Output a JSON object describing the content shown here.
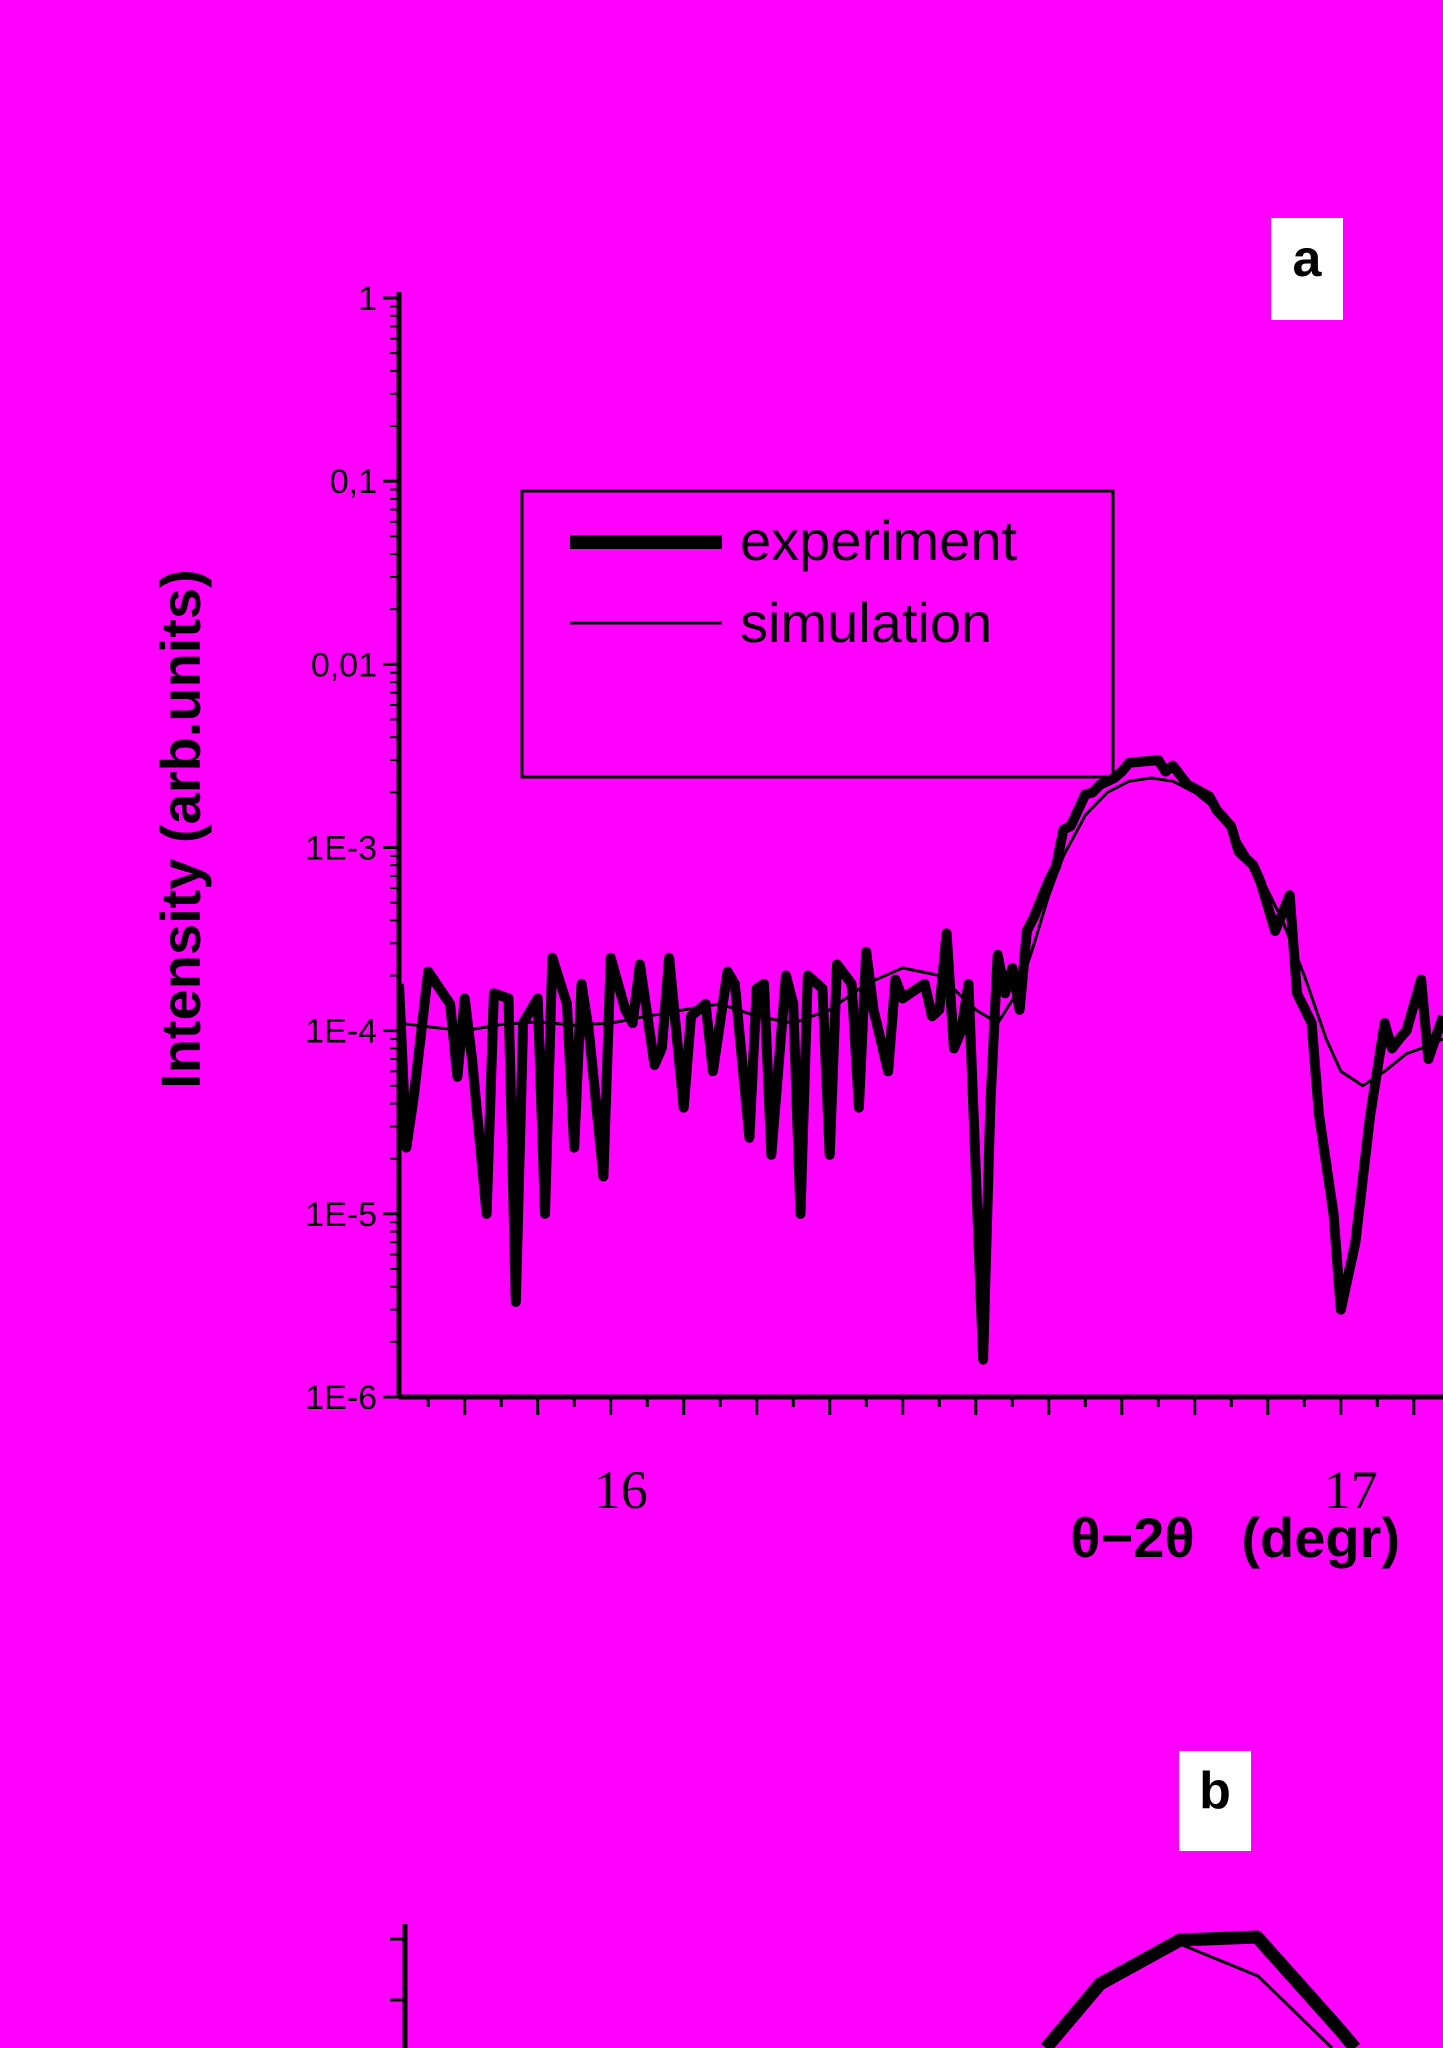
{
  "chart_data": [
    {
      "panel": "a",
      "type": "line",
      "title": "",
      "xlabel": "θ−2θ   (degr)",
      "ylabel": "Intensity (arb.units)",
      "yscale": "log",
      "ylim": [
        1e-06,
        1
      ],
      "xlim": [
        15.71,
        17.14
      ],
      "x_ticks": [
        {
          "value": 16,
          "label": "16"
        },
        {
          "value": 17,
          "label": "17"
        }
      ],
      "y_ticks": [
        {
          "value": 1,
          "label": "1"
        },
        {
          "value": 0.1,
          "label": "0,1"
        },
        {
          "value": 0.01,
          "label": "0,01"
        },
        {
          "value": 0.001,
          "label": "1E-3"
        },
        {
          "value": 0.0001,
          "label": "1E-4"
        },
        {
          "value": 1e-05,
          "label": "1E-5"
        },
        {
          "value": 1e-06,
          "label": "1E-6"
        }
      ],
      "legend_position": "upper-center",
      "series": [
        {
          "name": "experiment",
          "line_style": "thick",
          "points": [
            [
              15.71,
              0.00018
            ],
            [
              15.72,
              2.3e-05
            ],
            [
              15.73,
              4.3e-05
            ],
            [
              15.75,
              0.00021
            ],
            [
              15.77,
              0.00016
            ],
            [
              15.78,
              0.00014
            ],
            [
              15.79,
              5.6e-05
            ],
            [
              15.8,
              0.00015
            ],
            [
              15.81,
              7e-05
            ],
            [
              15.83,
              1e-05
            ],
            [
              15.84,
              0.00016
            ],
            [
              15.86,
              0.00015
            ],
            [
              15.87,
              3.3e-06
            ],
            [
              15.88,
              0.00011
            ],
            [
              15.9,
              0.00015
            ],
            [
              15.91,
              1e-05
            ],
            [
              15.92,
              0.00025
            ],
            [
              15.94,
              0.00014
            ],
            [
              15.95,
              2.3e-05
            ],
            [
              15.96,
              0.00018
            ],
            [
              15.97,
              0.0001
            ],
            [
              15.99,
              1.6e-05
            ],
            [
              16.0,
              0.00025
            ],
            [
              16.02,
              0.00013
            ],
            [
              16.03,
              0.00011
            ],
            [
              16.04,
              0.00023
            ],
            [
              16.06,
              6.5e-05
            ],
            [
              16.07,
              8e-05
            ],
            [
              16.08,
              0.00025
            ],
            [
              16.1,
              3.8e-05
            ],
            [
              16.11,
              0.00012
            ],
            [
              16.13,
              0.00014
            ],
            [
              16.14,
              6e-05
            ],
            [
              16.16,
              0.00021
            ],
            [
              16.17,
              0.00018
            ],
            [
              16.19,
              2.6e-05
            ],
            [
              16.2,
              0.00017
            ],
            [
              16.21,
              0.00018
            ],
            [
              16.22,
              2.1e-05
            ],
            [
              16.24,
              0.0002
            ],
            [
              16.25,
              0.00014
            ],
            [
              16.26,
              1e-05
            ],
            [
              16.27,
              0.0002
            ],
            [
              16.29,
              0.00017
            ],
            [
              16.3,
              2.1e-05
            ],
            [
              16.31,
              0.00023
            ],
            [
              16.33,
              0.00018
            ],
            [
              16.34,
              3.8e-05
            ],
            [
              16.35,
              0.00027
            ],
            [
              16.36,
              0.00013
            ],
            [
              16.38,
              6e-05
            ],
            [
              16.39,
              0.00019
            ],
            [
              16.4,
              0.00015
            ],
            [
              16.42,
              0.00017
            ],
            [
              16.43,
              0.00018
            ],
            [
              16.44,
              0.00012
            ],
            [
              16.45,
              0.00013
            ],
            [
              16.46,
              0.00034
            ],
            [
              16.47,
              8e-05
            ],
            [
              16.48,
              0.0001
            ],
            [
              16.49,
              0.00018
            ],
            [
              16.51,
              1.6e-06
            ],
            [
              16.52,
              4e-05
            ],
            [
              16.53,
              0.00026
            ],
            [
              16.54,
              0.00016
            ],
            [
              16.55,
              0.00022
            ],
            [
              16.56,
              0.00013
            ],
            [
              16.57,
              0.00035
            ],
            [
              16.58,
              0.00042
            ],
            [
              16.6,
              0.00066
            ],
            [
              16.61,
              0.00079
            ],
            [
              16.62,
              0.00125
            ],
            [
              16.63,
              0.00131
            ],
            [
              16.65,
              0.00195
            ],
            [
              16.66,
              0.002
            ],
            [
              16.67,
              0.0022
            ],
            [
              16.69,
              0.0024
            ],
            [
              16.7,
              0.0026
            ],
            [
              16.71,
              0.0029
            ],
            [
              16.73,
              0.00295
            ],
            [
              16.75,
              0.003
            ],
            [
              16.76,
              0.0026
            ],
            [
              16.77,
              0.0028
            ],
            [
              16.79,
              0.0022
            ],
            [
              16.8,
              0.0021
            ],
            [
              16.82,
              0.0019
            ],
            [
              16.83,
              0.0016
            ],
            [
              16.85,
              0.0013
            ],
            [
              16.86,
              0.00095
            ],
            [
              16.88,
              0.0008
            ],
            [
              16.89,
              0.00065
            ],
            [
              16.91,
              0.00035
            ],
            [
              16.93,
              0.00055
            ],
            [
              16.94,
              0.00016
            ],
            [
              16.96,
              0.00011
            ],
            [
              16.97,
              3.5e-05
            ],
            [
              16.99,
              1e-05
            ],
            [
              17.0,
              3e-06
            ],
            [
              17.02,
              7e-06
            ],
            [
              17.04,
              3.4e-05
            ],
            [
              17.06,
              0.00011
            ],
            [
              17.07,
              8e-05
            ],
            [
              17.08,
              9e-05
            ],
            [
              17.09,
              0.0001
            ],
            [
              17.11,
              0.00019
            ],
            [
              17.12,
              7e-05
            ],
            [
              17.14,
              0.00012
            ]
          ]
        },
        {
          "name": "simulation",
          "line_style": "thin",
          "points": [
            [
              15.71,
              0.00011
            ],
            [
              15.75,
              0.000105
            ],
            [
              15.8,
              0.0001
            ],
            [
              15.85,
              0.000108
            ],
            [
              15.9,
              0.000112
            ],
            [
              15.95,
              0.000107
            ],
            [
              16.0,
              0.00011
            ],
            [
              16.05,
              0.00012
            ],
            [
              16.1,
              0.00013
            ],
            [
              16.15,
              0.00014
            ],
            [
              16.2,
              0.00012
            ],
            [
              16.25,
              0.00011
            ],
            [
              16.3,
              0.00013
            ],
            [
              16.35,
              0.00018
            ],
            [
              16.4,
              0.00022
            ],
            [
              16.45,
              0.0002
            ],
            [
              16.5,
              0.00013
            ],
            [
              16.53,
              0.00011
            ],
            [
              16.56,
              0.00017
            ],
            [
              16.58,
              0.0003
            ],
            [
              16.6,
              0.00055
            ],
            [
              16.62,
              0.0009
            ],
            [
              16.65,
              0.0015
            ],
            [
              16.68,
              0.002
            ],
            [
              16.71,
              0.0023
            ],
            [
              16.74,
              0.0024
            ],
            [
              16.77,
              0.0023
            ],
            [
              16.8,
              0.002
            ],
            [
              16.83,
              0.0016
            ],
            [
              16.86,
              0.0011
            ],
            [
              16.89,
              0.0007
            ],
            [
              16.92,
              0.0004
            ],
            [
              16.95,
              0.0002
            ],
            [
              16.98,
              9e-05
            ],
            [
              17.0,
              6e-05
            ],
            [
              17.03,
              5e-05
            ],
            [
              17.06,
              6e-05
            ],
            [
              17.09,
              7.5e-05
            ],
            [
              17.11,
              8e-05
            ],
            [
              17.14,
              9e-05
            ]
          ]
        }
      ]
    },
    {
      "panel": "b",
      "type": "line",
      "title": "",
      "note": "panel cut off at bottom of image; only top portion visible",
      "series": [
        {
          "name": "experiment",
          "line_style": "thick"
        },
        {
          "name": "simulation",
          "line_style": "thin"
        }
      ]
    }
  ],
  "panel_labels": {
    "a": "a",
    "b": "b"
  },
  "colors": {
    "background": "#ff00ff",
    "lines": "#000000",
    "label_box": "#ffffff"
  }
}
